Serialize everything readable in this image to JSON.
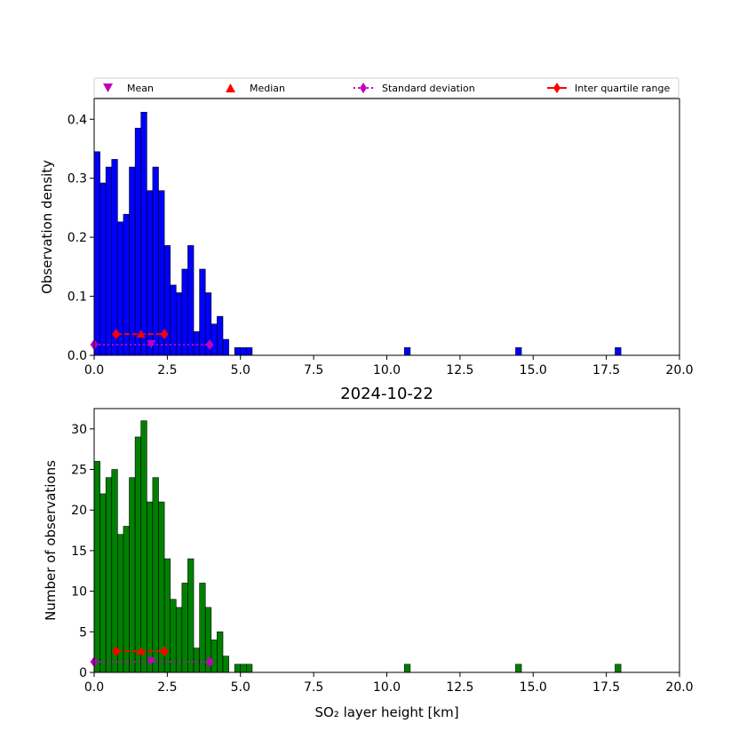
{
  "chart_data": [
    {
      "type": "bar",
      "bar_color": "#0000ff",
      "title": "",
      "xlabel": "",
      "ylabel": "Observation density",
      "xlim": [
        0,
        20
      ],
      "ylim": [
        0,
        0.435
      ],
      "xticks": [
        "0.0",
        "2.5",
        "5.0",
        "7.5",
        "10.0",
        "12.5",
        "15.0",
        "17.5",
        "20.0"
      ],
      "yticks": [
        "0.0",
        "0.1",
        "0.2",
        "0.3",
        "0.4"
      ],
      "bin_width": 0.2,
      "bin_starts": [
        0.0,
        0.2,
        0.4,
        0.6,
        0.8,
        1.0,
        1.2,
        1.4,
        1.6,
        1.8,
        2.0,
        2.2,
        2.4,
        2.6,
        2.8,
        3.0,
        3.2,
        3.4,
        3.6,
        3.8,
        4.0,
        4.2,
        4.4,
        4.8,
        5.0,
        5.2,
        10.6,
        14.4,
        17.8
      ],
      "values": [
        0.345,
        0.292,
        0.319,
        0.332,
        0.226,
        0.239,
        0.319,
        0.385,
        0.412,
        0.279,
        0.319,
        0.279,
        0.186,
        0.119,
        0.106,
        0.146,
        0.186,
        0.04,
        0.146,
        0.106,
        0.053,
        0.066,
        0.027,
        0.013,
        0.013,
        0.013,
        0.013,
        0.013,
        0.013
      ],
      "stats": {
        "mean": 1.95,
        "median": 1.6,
        "std_low": 0.0,
        "std_high": 3.95,
        "iqr_low": 0.75,
        "iqr_high": 2.4,
        "marker_y": 0.036,
        "std_y": 0.018
      },
      "legend": {
        "placement": "top",
        "entries": [
          "Mean",
          "Median",
          "Standard deviation",
          "Inter quartile range"
        ]
      }
    },
    {
      "type": "bar",
      "bar_color": "#008000",
      "title": "2024-10-22",
      "xlabel": "SO₂ layer height [km]",
      "ylabel": "Number of observations",
      "xlim": [
        0,
        20
      ],
      "ylim": [
        0,
        32.5
      ],
      "xticks": [
        "0.0",
        "2.5",
        "5.0",
        "7.5",
        "10.0",
        "12.5",
        "15.0",
        "17.5",
        "20.0"
      ],
      "yticks": [
        "0",
        "5",
        "10",
        "15",
        "20",
        "25",
        "30"
      ],
      "bin_width": 0.2,
      "bin_starts": [
        0.0,
        0.2,
        0.4,
        0.6,
        0.8,
        1.0,
        1.2,
        1.4,
        1.6,
        1.8,
        2.0,
        2.2,
        2.4,
        2.6,
        2.8,
        3.0,
        3.2,
        3.4,
        3.6,
        3.8,
        4.0,
        4.2,
        4.4,
        4.8,
        5.0,
        5.2,
        10.6,
        14.4,
        17.8
      ],
      "values": [
        26,
        22,
        24,
        25,
        17,
        18,
        24,
        29,
        31,
        21,
        24,
        21,
        14,
        9,
        8,
        11,
        14,
        3,
        11,
        8,
        4,
        5,
        2,
        1,
        1,
        1,
        1,
        1,
        1
      ],
      "stats": {
        "mean": 1.95,
        "median": 1.6,
        "std_low": 0.0,
        "std_high": 3.95,
        "iqr_low": 0.75,
        "iqr_high": 2.4,
        "marker_y": 2.6,
        "std_y": 1.3
      }
    }
  ],
  "colors": {
    "mean": "#bf00bf",
    "median": "#ff0000",
    "std": "#bf00bf",
    "iqr": "#ff0000"
  }
}
